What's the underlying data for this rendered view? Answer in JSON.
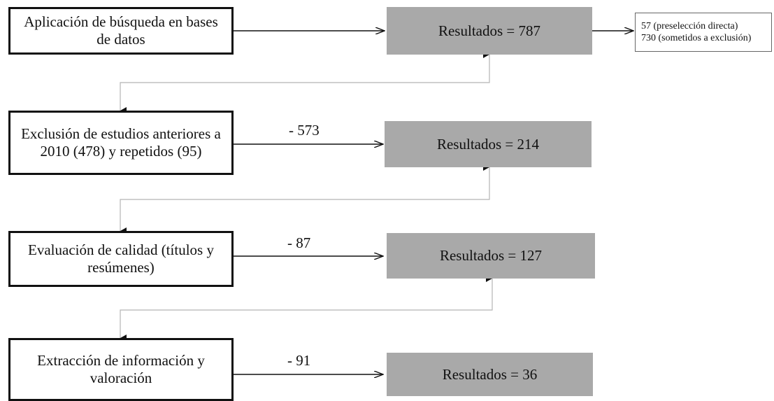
{
  "steps": [
    {
      "label": "Aplicación de búsqueda en bases de datos",
      "removed": "",
      "result": "Resultados = 787"
    },
    {
      "label": "Exclusión de estudios anteriores a 2010 (478) y repetidos (95)",
      "removed": "- 573",
      "result": "Resultados = 214"
    },
    {
      "label": "Evaluación de calidad (títulos y resúmenes)",
      "removed": "- 87",
      "result": "Resultados = 127"
    },
    {
      "label": "Extracción de información y valoración",
      "removed": "- 91",
      "result": "Resultados = 36"
    }
  ],
  "note": {
    "line1": "57 (preselección directa)",
    "line2": "730 (sometidos a exclusión)"
  },
  "colors": {
    "result_fill": "#a9a9a9",
    "line": "#111111",
    "loop_line": "#b5b5b5"
  }
}
